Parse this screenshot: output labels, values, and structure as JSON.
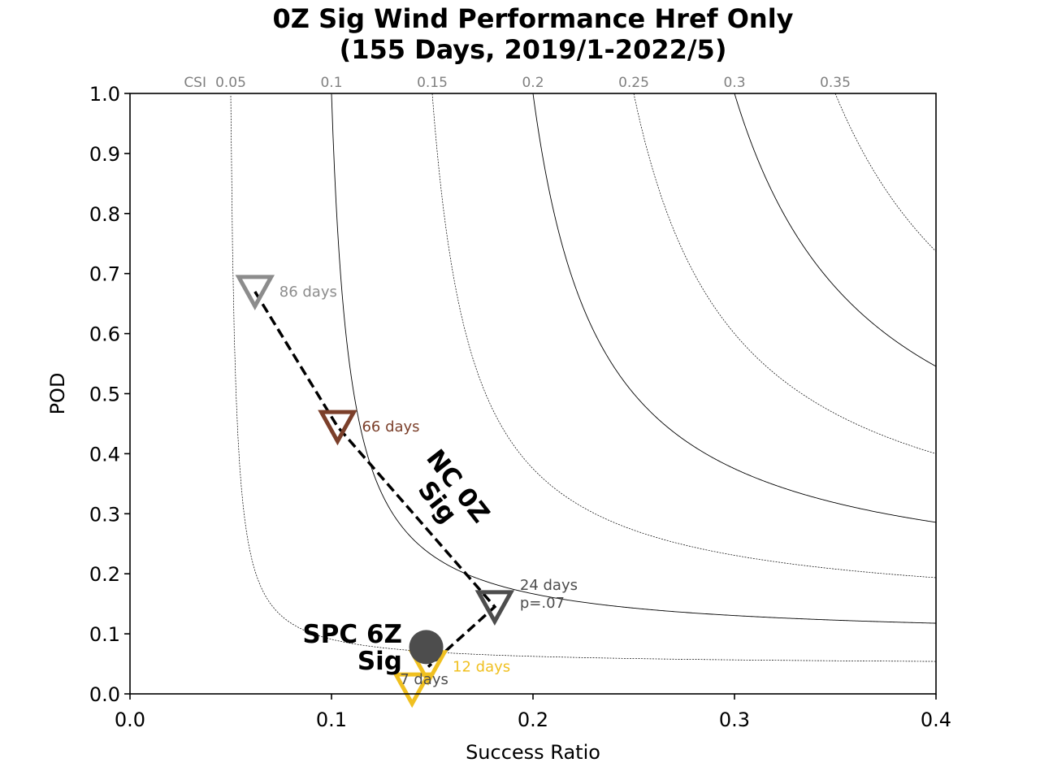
{
  "chart_data": {
    "type": "scatter",
    "title_lines": [
      "0Z Sig Wind Performance Href Only",
      "(155 Days, 2019/1-2022/5)"
    ],
    "xlabel": "Success Ratio",
    "ylabel": "POD",
    "xlim": [
      0.0,
      0.4
    ],
    "ylim": [
      0.0,
      1.0
    ],
    "x_ticks": [
      0.0,
      0.1,
      0.2,
      0.3,
      0.4
    ],
    "x_tick_labels": [
      "0.0",
      "0.1",
      "0.2",
      "0.3",
      "0.4"
    ],
    "y_ticks": [
      0.0,
      0.1,
      0.2,
      0.3,
      0.4,
      0.5,
      0.6,
      0.7,
      0.8,
      0.9,
      1.0
    ],
    "y_tick_labels": [
      "0.0",
      "0.1",
      "0.2",
      "0.3",
      "0.4",
      "0.5",
      "0.6",
      "0.7",
      "0.8",
      "0.9",
      "1.0"
    ],
    "csi_prefix": "CSI",
    "csi_contours": [
      {
        "csi": 0.05,
        "label": "0.05",
        "style": "dotted"
      },
      {
        "csi": 0.1,
        "label": "0.1",
        "style": "solid"
      },
      {
        "csi": 0.15,
        "label": "0.15",
        "style": "dotted"
      },
      {
        "csi": 0.2,
        "label": "0.2",
        "style": "solid"
      },
      {
        "csi": 0.25,
        "label": "0.25",
        "style": "dotted"
      },
      {
        "csi": 0.3,
        "label": "0.3",
        "style": "solid"
      },
      {
        "csi": 0.35,
        "label": "0.35",
        "style": "dotted"
      }
    ],
    "series": [
      {
        "name_lines": [
          "NC 0Z",
          "Sig"
        ],
        "line_style": "dashed",
        "points": [
          {
            "x": 0.062,
            "y": 0.67,
            "marker": "triangle-down",
            "color": "#8c8c8c",
            "label_lines": [
              "86 days"
            ]
          },
          {
            "x": 0.103,
            "y": 0.445,
            "marker": "triangle-down",
            "color": "#7b3f2a",
            "label_lines": [
              "66 days"
            ]
          },
          {
            "x": 0.181,
            "y": 0.145,
            "marker": "triangle-down",
            "color": "#4d4d4d",
            "label_lines": [
              "24 days",
              "p=.07"
            ]
          },
          {
            "x": 0.148,
            "y": 0.045,
            "marker": "triangle-down",
            "color": "#f0c020",
            "label_lines": [
              "12 days"
            ]
          },
          {
            "x": 0.14,
            "y": 0.008,
            "marker": "triangle-down",
            "color": "#f0c020",
            "label_lines": [
              "7 days"
            ],
            "label_color": "#4d4d4d"
          }
        ]
      },
      {
        "name_lines": [
          "SPC 6Z",
          "Sig"
        ],
        "points": [
          {
            "x": 0.147,
            "y": 0.078,
            "marker": "circle",
            "color": "#4d4d4d"
          }
        ]
      }
    ]
  }
}
